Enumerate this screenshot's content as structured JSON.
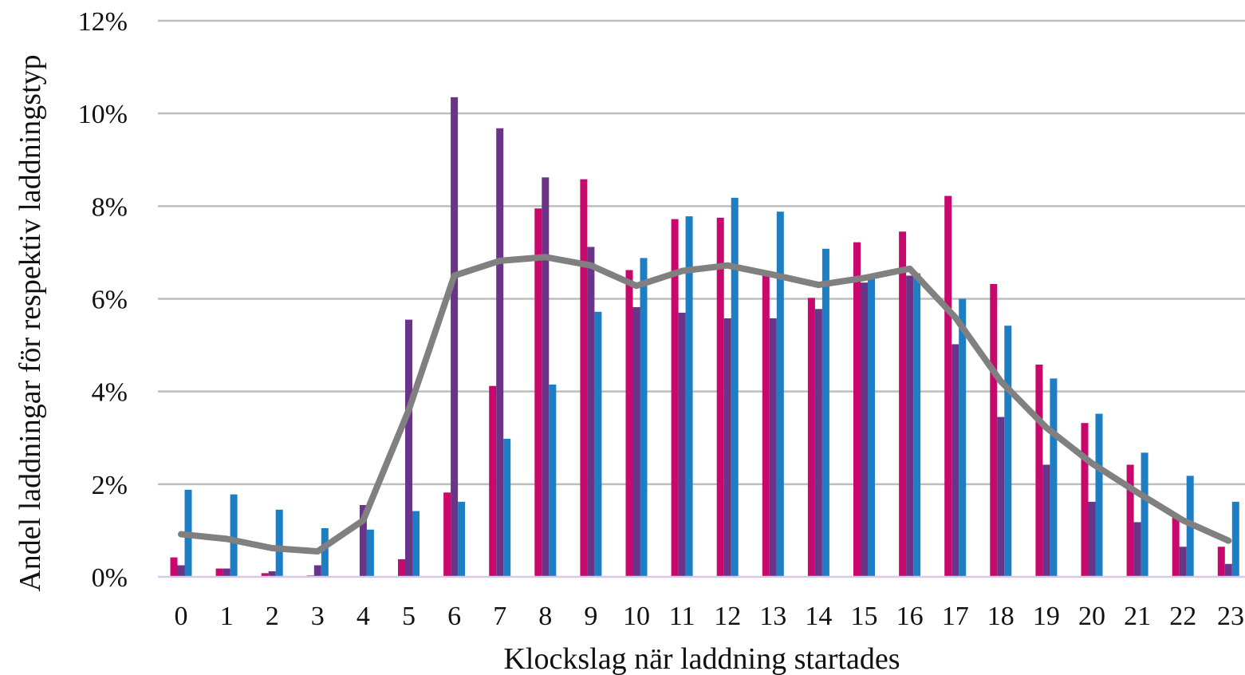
{
  "chart_data": {
    "type": "bar",
    "title": "",
    "xlabel": "Klockslag när laddning startades",
    "ylabel": "Andel laddningar för respektiv laddningstyp",
    "ylim": [
      0,
      12
    ],
    "yticks": [
      0,
      2,
      4,
      6,
      8,
      10,
      12
    ],
    "ytick_labels": [
      "0%",
      "2%",
      "4%",
      "6%",
      "8%",
      "10%",
      "12%"
    ],
    "grid": true,
    "legend": "none",
    "categories": [
      "0",
      "1",
      "2",
      "3",
      "4",
      "5",
      "6",
      "7",
      "8",
      "9",
      "10",
      "11",
      "12",
      "13",
      "14",
      "15",
      "16",
      "17",
      "18",
      "19",
      "20",
      "21",
      "22",
      "23"
    ],
    "series": [
      {
        "type": "bar",
        "color": "#C8086C",
        "values": [
          0.42,
          0.18,
          0.08,
          0.03,
          0.0,
          0.38,
          1.82,
          4.12,
          7.95,
          8.58,
          6.62,
          7.72,
          7.75,
          6.55,
          6.02,
          7.22,
          7.45,
          8.22,
          6.32,
          4.58,
          3.32,
          2.42,
          1.28,
          0.65
        ]
      },
      {
        "type": "bar",
        "color": "#6A3589",
        "values": [
          0.25,
          0.18,
          0.12,
          0.25,
          1.55,
          5.55,
          10.35,
          9.68,
          8.62,
          7.12,
          5.82,
          5.7,
          5.58,
          5.58,
          5.78,
          6.35,
          6.5,
          5.02,
          3.45,
          2.42,
          1.62,
          1.18,
          0.65,
          0.28
        ]
      },
      {
        "type": "bar",
        "color": "#1E7EC3",
        "values": [
          1.88,
          1.78,
          1.45,
          1.05,
          1.02,
          1.42,
          1.62,
          2.98,
          4.15,
          5.72,
          6.88,
          7.78,
          8.18,
          7.88,
          7.08,
          6.45,
          6.55,
          6.0,
          5.42,
          4.28,
          3.52,
          2.68,
          2.18,
          1.62
        ]
      },
      {
        "type": "line",
        "color": "#808080",
        "values": [
          0.92,
          0.82,
          0.62,
          0.55,
          1.22,
          3.6,
          6.5,
          6.82,
          6.9,
          6.72,
          6.28,
          6.6,
          6.72,
          6.52,
          6.3,
          6.45,
          6.65,
          5.6,
          4.22,
          3.22,
          2.45,
          1.82,
          1.22,
          0.78
        ]
      }
    ]
  }
}
